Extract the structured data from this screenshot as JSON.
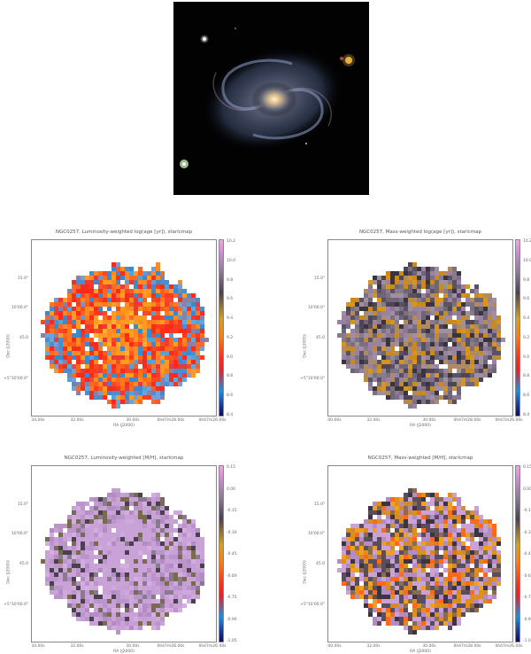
{
  "figure": {
    "photo": {
      "description_icon": "galaxy-photo"
    },
    "panels": [
      {
        "id": "lum-age",
        "title": "NGC0257, Luminosity-weighted log(age [yr]), starlcmap",
        "yticks": [
          "15.0\"",
          "10'00.0\"",
          "45.0",
          "+5°10'00.0\""
        ],
        "xticks": [
          "34.00s",
          "32.00s",
          "30.00s",
          "0h47m28.00s",
          "0h47m26.00s"
        ],
        "xlabel": "RA (J2000)",
        "ylabel": "Dec (J2000)",
        "cticks": [
          "10.2",
          "10.0",
          "9.8",
          "9.6",
          "9.4",
          "9.2",
          "9.0",
          "8.8",
          "8.6",
          "8.4"
        ],
        "cmap": "rainbow",
        "dominant": "red"
      },
      {
        "id": "mass-age",
        "title": "NGC0257, Mass-weighted log(age [yr]), starlcmap",
        "yticks": [
          "15.0\"",
          "10'00.0\"",
          "45.0",
          "+5°10'00.0\""
        ],
        "xticks": [
          "00.00s",
          "32.00s",
          "30.00s",
          "0h47m28.00s",
          "0h47m26.00s"
        ],
        "xlabel": "RA (J2000)",
        "ylabel": "Dec (J2000)",
        "cticks": [
          "10.2",
          "10.0",
          "9.8",
          "9.6",
          "9.4",
          "9.2",
          "9.0",
          "8.8",
          "8.6",
          "8.4"
        ],
        "cmap": "rainbow",
        "dominant": "violet"
      },
      {
        "id": "lum-metal",
        "title": "NGC0257, Luminosity-weighted [M/H], starlcmap",
        "yticks": [
          "15.0\"",
          "10'00.0\"",
          "45.0",
          "+5°10'00.0\""
        ],
        "xticks": [
          "34.00s",
          "32.00s",
          "30.00s",
          "0h47m28.00s",
          "0h47m26.00s"
        ],
        "xlabel": "RA (J2000)",
        "ylabel": "Dec (J2000)",
        "cticks": [
          "0.15",
          "0.00",
          "-0.15",
          "-0.30",
          "-0.45",
          "-0.60",
          "-0.75",
          "-0.90",
          "-1.05"
        ],
        "cmap": "rainbow",
        "dominant": "violet"
      },
      {
        "id": "mass-metal",
        "title": "NGC0257, Mass-weighted [M/H], starlcmap",
        "yticks": [
          "15.0\"",
          "10'00.0\"",
          "45.0",
          "+5°10'00.0\""
        ],
        "xticks": [
          "00.00s",
          "32.00s",
          "30.00s",
          "0h47m28.00s",
          "0h47m26.00s"
        ],
        "xlabel": "RA (J2000)",
        "ylabel": "Dec (J2000)",
        "cticks": [
          "0.15",
          "0.00",
          "-0.15",
          "-0.30",
          "-0.45",
          "-0.60",
          "-0.75",
          "-0.90",
          "-1.05"
        ],
        "cmap": "rainbow",
        "dominant": "mixed"
      }
    ]
  }
}
